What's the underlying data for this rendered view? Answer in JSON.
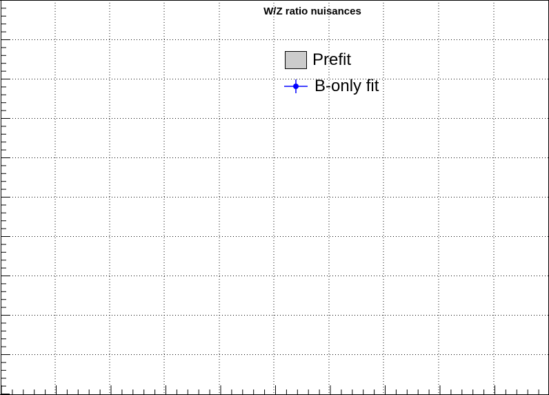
{
  "chart_data": {
    "type": "scatter",
    "title": "W/Z ratio nuisances",
    "xlabel": "",
    "ylabel": "",
    "grid": true,
    "legend_position": "top-right",
    "series": [
      {
        "name": "Prefit",
        "style": "box",
        "fill_color": "#cccccc",
        "edge_color": "#000000",
        "values": []
      },
      {
        "name": "B-only fit",
        "style": "points-with-error-bars",
        "color": "#0000ff",
        "values": []
      }
    ]
  }
}
